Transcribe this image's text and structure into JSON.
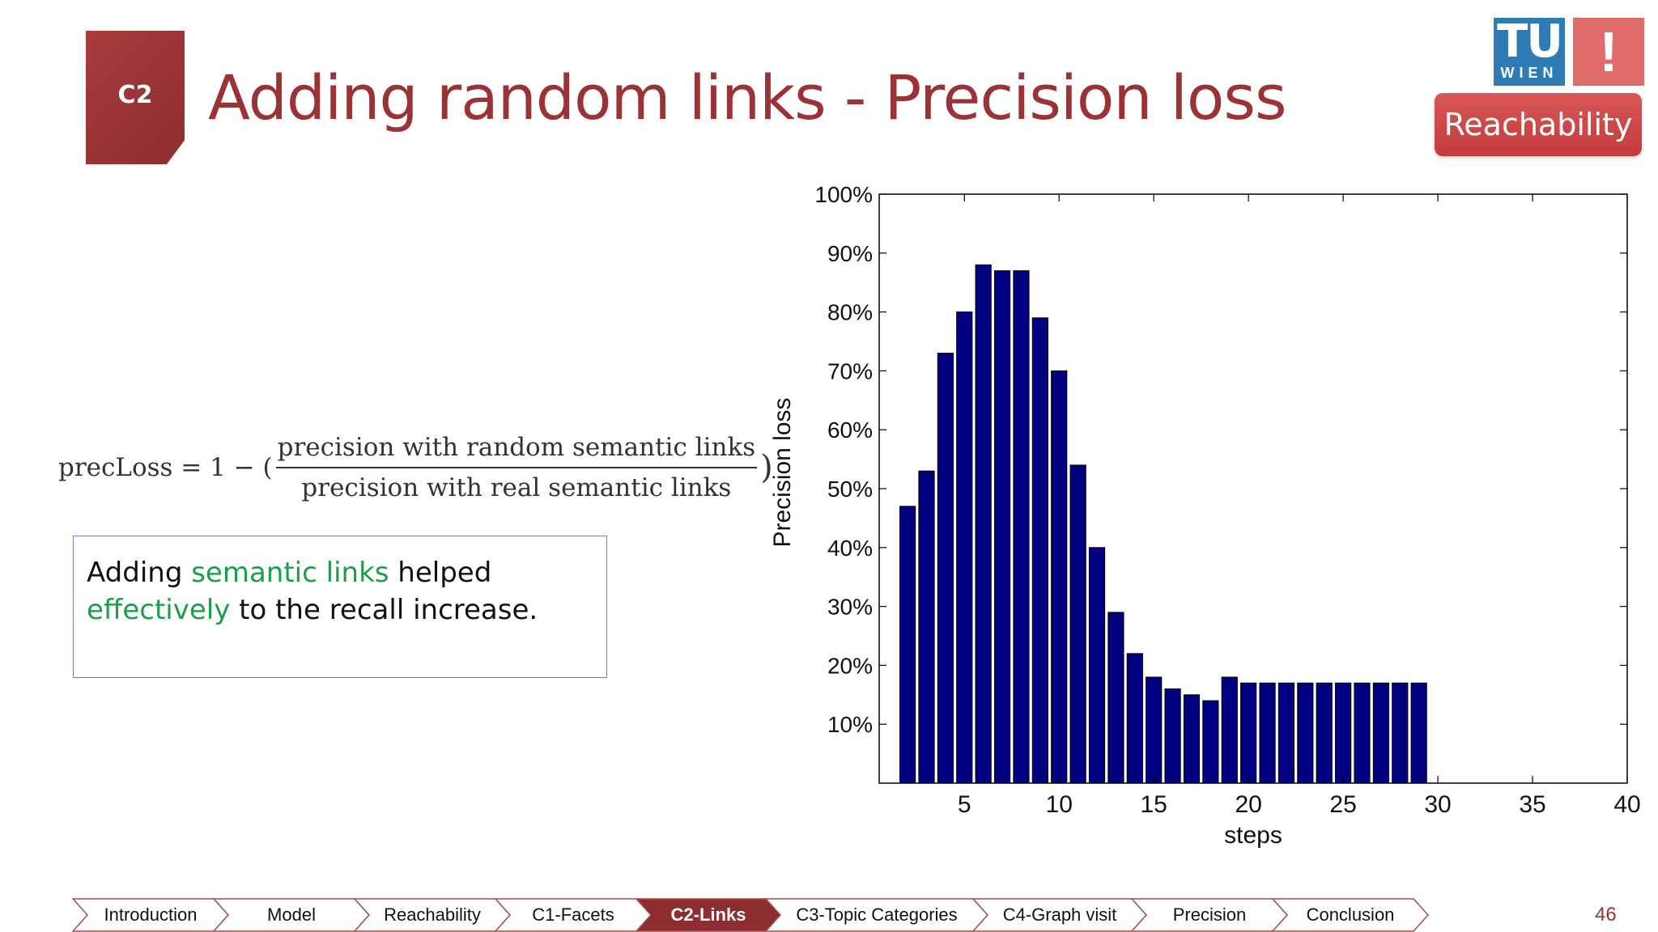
{
  "section_tag": "C2",
  "title": "Adding random links - Precision loss",
  "logo": {
    "tu": "TU",
    "wien": "WIEN",
    "exclaim": "!"
  },
  "section_button": "Reachability",
  "formula": {
    "lhs": "precLoss = 1 − (",
    "numerator": "precision with random semantic links",
    "denominator": "precision with real semantic links",
    "rhs": ")"
  },
  "note": {
    "part1": "Adding ",
    "highlight1": "semantic links",
    "part2": " helped ",
    "highlight2": "effectively",
    "part3": " to the recall increase."
  },
  "nav": {
    "items": [
      {
        "label": "Introduction",
        "active": false
      },
      {
        "label": "Model",
        "active": false
      },
      {
        "label": "Reachability",
        "active": false
      },
      {
        "label": "C1-Facets",
        "active": false
      },
      {
        "label": "C2-Links",
        "active": true
      },
      {
        "label": "C3-Topic Categories",
        "active": false
      },
      {
        "label": "C4-Graph visit",
        "active": false
      },
      {
        "label": "Precision",
        "active": false
      },
      {
        "label": "Conclusion",
        "active": false
      }
    ],
    "active_color": "#8e2d30"
  },
  "page_number": "46",
  "chart_data": {
    "type": "bar",
    "x": [
      2,
      3,
      4,
      5,
      6,
      7,
      8,
      9,
      10,
      11,
      12,
      13,
      14,
      15,
      16,
      17,
      18,
      19,
      20,
      21,
      22,
      23,
      24,
      25,
      26,
      27,
      28,
      29
    ],
    "values": [
      47,
      53,
      73,
      80,
      88,
      87,
      87,
      79,
      70,
      54,
      40,
      29,
      22,
      18,
      16,
      15,
      14,
      18,
      17,
      17,
      17,
      17,
      17,
      17,
      17,
      17,
      17,
      17
    ],
    "xlabel": "steps",
    "ylabel": "Precision loss",
    "xlim": [
      1,
      40
    ],
    "ylim": [
      0,
      100
    ],
    "xticks": [
      5,
      10,
      15,
      20,
      25,
      30,
      35,
      40
    ],
    "yticks": [
      10,
      20,
      30,
      40,
      50,
      60,
      70,
      80,
      90,
      100
    ],
    "ytick_suffix": "%",
    "bar_color": "#000080",
    "grid": false
  }
}
